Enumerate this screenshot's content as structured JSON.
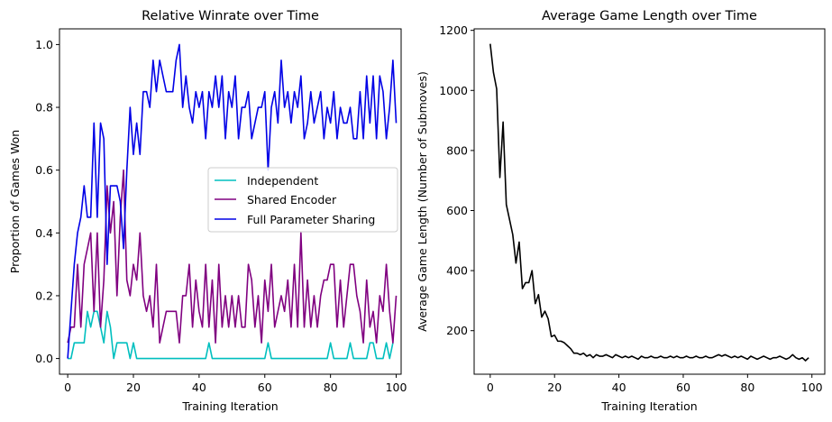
{
  "chart_data": [
    {
      "type": "line",
      "title": "Relative Winrate over Time",
      "xlabel": "Training Iteration",
      "ylabel": "Proportion of Games Won",
      "xlim": [
        -2.5,
        101.5
      ],
      "ylim": [
        -0.05,
        1.05
      ],
      "xticks": [
        0,
        20,
        40,
        60,
        80,
        100
      ],
      "yticks": [
        0.0,
        0.2,
        0.4,
        0.6,
        0.8,
        1.0
      ],
      "xtick_labels": [
        "0",
        "20",
        "40",
        "60",
        "80",
        "100"
      ],
      "ytick_labels": [
        "0.0",
        "0.2",
        "0.4",
        "0.6",
        "0.8",
        "1.0"
      ],
      "legend": "center-right",
      "series": [
        {
          "name": "Independent",
          "color": "#00bfbf",
          "values": [
            0,
            0,
            0.05,
            0.05,
            0.05,
            0.05,
            0.15,
            0.1,
            0.15,
            0.15,
            0.1,
            0.05,
            0.15,
            0.1,
            0,
            0.05,
            0.05,
            0.05,
            0.05,
            0,
            0.05,
            0,
            0,
            0,
            0,
            0,
            0,
            0,
            0,
            0,
            0,
            0,
            0,
            0,
            0,
            0,
            0,
            0,
            0,
            0,
            0,
            0,
            0,
            0.05,
            0,
            0,
            0,
            0,
            0,
            0,
            0,
            0,
            0,
            0,
            0,
            0,
            0,
            0,
            0,
            0,
            0,
            0.05,
            0,
            0,
            0,
            0,
            0,
            0,
            0,
            0,
            0,
            0,
            0,
            0,
            0,
            0,
            0,
            0,
            0,
            0,
            0.05,
            0,
            0,
            0,
            0,
            0,
            0.05,
            0,
            0,
            0,
            0,
            0,
            0.05,
            0.05,
            0,
            0,
            0,
            0.05,
            0,
            0.05
          ]
        },
        {
          "name": "Shared Encoder",
          "color": "#800080",
          "values": [
            0.05,
            0.1,
            0.1,
            0.3,
            0.1,
            0.3,
            0.35,
            0.4,
            0.15,
            0.4,
            0.1,
            0.25,
            0.55,
            0.4,
            0.5,
            0.2,
            0.45,
            0.6,
            0.25,
            0.2,
            0.3,
            0.25,
            0.4,
            0.2,
            0.15,
            0.2,
            0.1,
            0.3,
            0.05,
            0.1,
            0.15,
            0.15,
            0.15,
            0.15,
            0.05,
            0.2,
            0.2,
            0.3,
            0.1,
            0.25,
            0.15,
            0.1,
            0.3,
            0.1,
            0.25,
            0.05,
            0.3,
            0.1,
            0.2,
            0.1,
            0.2,
            0.1,
            0.2,
            0.1,
            0.1,
            0.3,
            0.25,
            0.1,
            0.2,
            0.05,
            0.25,
            0.15,
            0.3,
            0.1,
            0.15,
            0.2,
            0.15,
            0.25,
            0.1,
            0.3,
            0.1,
            0.4,
            0.1,
            0.25,
            0.1,
            0.2,
            0.1,
            0.2,
            0.25,
            0.25,
            0.3,
            0.3,
            0.1,
            0.25,
            0.1,
            0.2,
            0.3,
            0.3,
            0.2,
            0.15,
            0.05,
            0.25,
            0.1,
            0.15,
            0.05,
            0.2,
            0.15,
            0.3,
            0.15,
            0.05,
            0.2
          ]
        },
        {
          "name": "Full Parameter Sharing",
          "color": "#0000e6",
          "values": [
            0,
            0.15,
            0.3,
            0.4,
            0.45,
            0.55,
            0.45,
            0.45,
            0.75,
            0.45,
            0.75,
            0.7,
            0.3,
            0.55,
            0.55,
            0.55,
            0.5,
            0.35,
            0.6,
            0.8,
            0.65,
            0.75,
            0.65,
            0.85,
            0.85,
            0.8,
            0.95,
            0.85,
            0.95,
            0.9,
            0.85,
            0.85,
            0.85,
            0.95,
            1.0,
            0.8,
            0.9,
            0.8,
            0.75,
            0.85,
            0.8,
            0.85,
            0.7,
            0.85,
            0.8,
            0.9,
            0.8,
            0.9,
            0.7,
            0.85,
            0.8,
            0.9,
            0.7,
            0.8,
            0.8,
            0.85,
            0.7,
            0.75,
            0.8,
            0.8,
            0.85,
            0.6,
            0.8,
            0.85,
            0.75,
            0.95,
            0.8,
            0.85,
            0.75,
            0.85,
            0.8,
            0.9,
            0.7,
            0.75,
            0.85,
            0.75,
            0.8,
            0.85,
            0.7,
            0.8,
            0.75,
            0.85,
            0.7,
            0.8,
            0.75,
            0.75,
            0.8,
            0.7,
            0.7,
            0.85,
            0.7,
            0.9,
            0.75,
            0.9,
            0.7,
            0.9,
            0.85,
            0.7,
            0.8,
            0.95,
            0.75
          ]
        }
      ]
    },
    {
      "type": "line",
      "title": "Average Game Length over Time",
      "xlabel": "Training Iteration",
      "ylabel": "Average Game Length (Number of Submoves)",
      "xlim": [
        -5,
        104
      ],
      "ylim": [
        55,
        1205
      ],
      "xticks": [
        0,
        20,
        40,
        60,
        80,
        100
      ],
      "yticks": [
        200,
        400,
        600,
        800,
        1000,
        1200
      ],
      "xtick_labels": [
        "0",
        "20",
        "40",
        "60",
        "80",
        "100"
      ],
      "ytick_labels": [
        "200",
        "400",
        "600",
        "800",
        "1000",
        "1200"
      ],
      "series": [
        {
          "color": "#000000",
          "values": [
            1155,
            1060,
            1005,
            710,
            895,
            620,
            570,
            520,
            425,
            495,
            340,
            360,
            360,
            400,
            290,
            320,
            245,
            265,
            240,
            180,
            185,
            165,
            165,
            160,
            150,
            140,
            125,
            125,
            120,
            125,
            115,
            120,
            110,
            120,
            115,
            115,
            120,
            115,
            110,
            120,
            115,
            110,
            115,
            110,
            115,
            110,
            105,
            115,
            110,
            110,
            115,
            110,
            110,
            115,
            110,
            110,
            115,
            110,
            115,
            110,
            110,
            115,
            110,
            110,
            115,
            110,
            110,
            115,
            110,
            110,
            115,
            120,
            115,
            120,
            115,
            110,
            115,
            110,
            115,
            110,
            105,
            115,
            110,
            105,
            110,
            115,
            110,
            105,
            110,
            110,
            115,
            110,
            105,
            110,
            120,
            110,
            105,
            110,
            100,
            110
          ]
        }
      ]
    }
  ]
}
